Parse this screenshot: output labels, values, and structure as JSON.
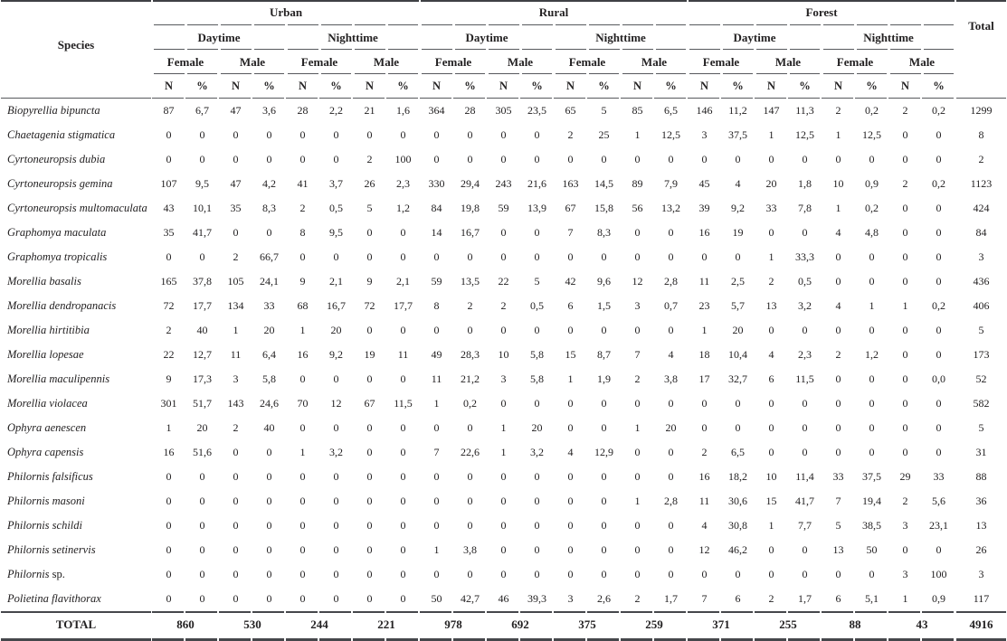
{
  "chart_data": {
    "type": "table",
    "header": {
      "species_label": "Species",
      "total_label": "Total",
      "habitats": [
        "Urban",
        "Rural",
        "Forest"
      ],
      "periods": [
        "Daytime",
        "Nighttime"
      ],
      "sexes": [
        "Female",
        "Male"
      ],
      "measures": [
        "N",
        "%"
      ]
    },
    "column_order_note": "24 value columns per row: habitat (Urban, Rural, Forest) x period (Daytime, Nighttime) x sex (Female, Male) x measure (N, %)",
    "rows": [
      {
        "name": "Biopyrellia bipuncta",
        "suffix": "",
        "values": [
          "87",
          "6,7",
          "47",
          "3,6",
          "28",
          "2,2",
          "21",
          "1,6",
          "364",
          "28",
          "305",
          "23,5",
          "65",
          "5",
          "85",
          "6,5",
          "146",
          "11,2",
          "147",
          "11,3",
          "2",
          "0,2",
          "2",
          "0,2"
        ],
        "total": "1299"
      },
      {
        "name": "Chaetagenia stigmatica",
        "suffix": "",
        "values": [
          "0",
          "0",
          "0",
          "0",
          "0",
          "0",
          "0",
          "0",
          "0",
          "0",
          "0",
          "0",
          "2",
          "25",
          "1",
          "12,5",
          "3",
          "37,5",
          "1",
          "12,5",
          "1",
          "12,5",
          "0",
          "0"
        ],
        "total": "8"
      },
      {
        "name": "Cyrtoneuropsis dubia",
        "suffix": "",
        "values": [
          "0",
          "0",
          "0",
          "0",
          "0",
          "0",
          "2",
          "100",
          "0",
          "0",
          "0",
          "0",
          "0",
          "0",
          "0",
          "0",
          "0",
          "0",
          "0",
          "0",
          "0",
          "0",
          "0",
          "0"
        ],
        "total": "2"
      },
      {
        "name": "Cyrtoneuropsis gemina",
        "suffix": "",
        "values": [
          "107",
          "9,5",
          "47",
          "4,2",
          "41",
          "3,7",
          "26",
          "2,3",
          "330",
          "29,4",
          "243",
          "21,6",
          "163",
          "14,5",
          "89",
          "7,9",
          "45",
          "4",
          "20",
          "1,8",
          "10",
          "0,9",
          "2",
          "0,2"
        ],
        "total": "1123"
      },
      {
        "name": "Cyrtoneuropsis multomaculata",
        "suffix": "",
        "values": [
          "43",
          "10,1",
          "35",
          "8,3",
          "2",
          "0,5",
          "5",
          "1,2",
          "84",
          "19,8",
          "59",
          "13,9",
          "67",
          "15,8",
          "56",
          "13,2",
          "39",
          "9,2",
          "33",
          "7,8",
          "1",
          "0,2",
          "0",
          "0"
        ],
        "total": "424"
      },
      {
        "name": "Graphomya maculata",
        "suffix": "",
        "values": [
          "35",
          "41,7",
          "0",
          "0",
          "8",
          "9,5",
          "0",
          "0",
          "14",
          "16,7",
          "0",
          "0",
          "7",
          "8,3",
          "0",
          "0",
          "16",
          "19",
          "0",
          "0",
          "4",
          "4,8",
          "0",
          "0"
        ],
        "total": "84"
      },
      {
        "name": "Graphomya tropicalis",
        "suffix": "",
        "values": [
          "0",
          "0",
          "2",
          "66,7",
          "0",
          "0",
          "0",
          "0",
          "0",
          "0",
          "0",
          "0",
          "0",
          "0",
          "0",
          "0",
          "0",
          "0",
          "1",
          "33,3",
          "0",
          "0",
          "0",
          "0"
        ],
        "total": "3"
      },
      {
        "name": "Morellia basalis",
        "suffix": "",
        "values": [
          "165",
          "37,8",
          "105",
          "24,1",
          "9",
          "2,1",
          "9",
          "2,1",
          "59",
          "13,5",
          "22",
          "5",
          "42",
          "9,6",
          "12",
          "2,8",
          "11",
          "2,5",
          "2",
          "0,5",
          "0",
          "0",
          "0",
          "0"
        ],
        "total": "436"
      },
      {
        "name": "Morellia dendropanacis",
        "suffix": "",
        "values": [
          "72",
          "17,7",
          "134",
          "33",
          "68",
          "16,7",
          "72",
          "17,7",
          "8",
          "2",
          "2",
          "0,5",
          "6",
          "1,5",
          "3",
          "0,7",
          "23",
          "5,7",
          "13",
          "3,2",
          "4",
          "1",
          "1",
          "0,2"
        ],
        "total": "406"
      },
      {
        "name": "Morellia hirtitibia",
        "suffix": "",
        "values": [
          "2",
          "40",
          "1",
          "20",
          "1",
          "20",
          "0",
          "0",
          "0",
          "0",
          "0",
          "0",
          "0",
          "0",
          "0",
          "0",
          "1",
          "20",
          "0",
          "0",
          "0",
          "0",
          "0",
          "0"
        ],
        "total": "5"
      },
      {
        "name": "Morellia lopesae",
        "suffix": "",
        "values": [
          "22",
          "12,7",
          "11",
          "6,4",
          "16",
          "9,2",
          "19",
          "11",
          "49",
          "28,3",
          "10",
          "5,8",
          "15",
          "8,7",
          "7",
          "4",
          "18",
          "10,4",
          "4",
          "2,3",
          "2",
          "1,2",
          "0",
          "0"
        ],
        "total": "173"
      },
      {
        "name": "Morellia maculipennis",
        "suffix": "",
        "values": [
          "9",
          "17,3",
          "3",
          "5,8",
          "0",
          "0",
          "0",
          "0",
          "11",
          "21,2",
          "3",
          "5,8",
          "1",
          "1,9",
          "2",
          "3,8",
          "17",
          "32,7",
          "6",
          "11,5",
          "0",
          "0",
          "0",
          "0,0"
        ],
        "total": "52"
      },
      {
        "name": "Morellia violacea",
        "suffix": "",
        "values": [
          "301",
          "51,7",
          "143",
          "24,6",
          "70",
          "12",
          "67",
          "11,5",
          "1",
          "0,2",
          "0",
          "0",
          "0",
          "0",
          "0",
          "0",
          "0",
          "0",
          "0",
          "0",
          "0",
          "0",
          "0",
          "0"
        ],
        "total": "582"
      },
      {
        "name": "Ophyra aenescen",
        "suffix": "",
        "values": [
          "1",
          "20",
          "2",
          "40",
          "0",
          "0",
          "0",
          "0",
          "0",
          "0",
          "1",
          "20",
          "0",
          "0",
          "1",
          "20",
          "0",
          "0",
          "0",
          "0",
          "0",
          "0",
          "0",
          "0"
        ],
        "total": "5"
      },
      {
        "name": "Ophyra capensis",
        "suffix": "",
        "values": [
          "16",
          "51,6",
          "0",
          "0",
          "1",
          "3,2",
          "0",
          "0",
          "7",
          "22,6",
          "1",
          "3,2",
          "4",
          "12,9",
          "0",
          "0",
          "2",
          "6,5",
          "0",
          "0",
          "0",
          "0",
          "0",
          "0"
        ],
        "total": "31"
      },
      {
        "name": "Philornis falsificus",
        "suffix": "",
        "values": [
          "0",
          "0",
          "0",
          "0",
          "0",
          "0",
          "0",
          "0",
          "0",
          "0",
          "0",
          "0",
          "0",
          "0",
          "0",
          "0",
          "16",
          "18,2",
          "10",
          "11,4",
          "33",
          "37,5",
          "29",
          "33"
        ],
        "total": "88"
      },
      {
        "name": "Philornis masoni",
        "suffix": "",
        "values": [
          "0",
          "0",
          "0",
          "0",
          "0",
          "0",
          "0",
          "0",
          "0",
          "0",
          "0",
          "0",
          "0",
          "0",
          "1",
          "2,8",
          "11",
          "30,6",
          "15",
          "41,7",
          "7",
          "19,4",
          "2",
          "5,6"
        ],
        "total": "36"
      },
      {
        "name": "Philornis schildi",
        "suffix": "",
        "values": [
          "0",
          "0",
          "0",
          "0",
          "0",
          "0",
          "0",
          "0",
          "0",
          "0",
          "0",
          "0",
          "0",
          "0",
          "0",
          "0",
          "4",
          "30,8",
          "1",
          "7,7",
          "5",
          "38,5",
          "3",
          "23,1"
        ],
        "total": "13"
      },
      {
        "name": "Philornis setinervis",
        "suffix": "",
        "values": [
          "0",
          "0",
          "0",
          "0",
          "0",
          "0",
          "0",
          "0",
          "1",
          "3,8",
          "0",
          "0",
          "0",
          "0",
          "0",
          "0",
          "12",
          "46,2",
          "0",
          "0",
          "13",
          "50",
          "0",
          "0"
        ],
        "total": "26"
      },
      {
        "name": "Philornis",
        "suffix": " sp.",
        "values": [
          "0",
          "0",
          "0",
          "0",
          "0",
          "0",
          "0",
          "0",
          "0",
          "0",
          "0",
          "0",
          "0",
          "0",
          "0",
          "0",
          "0",
          "0",
          "0",
          "0",
          "0",
          "0",
          "3",
          "100"
        ],
        "total": "3"
      },
      {
        "name": "Polietina flavithorax",
        "suffix": "",
        "values": [
          "0",
          "0",
          "0",
          "0",
          "0",
          "0",
          "0",
          "0",
          "50",
          "42,7",
          "46",
          "39,3",
          "3",
          "2,6",
          "2",
          "1,7",
          "7",
          "6",
          "2",
          "1,7",
          "6",
          "5,1",
          "1",
          "0,9"
        ],
        "total": "117"
      }
    ],
    "footer": {
      "label": "TOTAL",
      "group_totals": [
        "860",
        "530",
        "244",
        "221",
        "978",
        "692",
        "375",
        "259",
        "371",
        "255",
        "88",
        "43"
      ],
      "grand_total": "4916"
    }
  }
}
